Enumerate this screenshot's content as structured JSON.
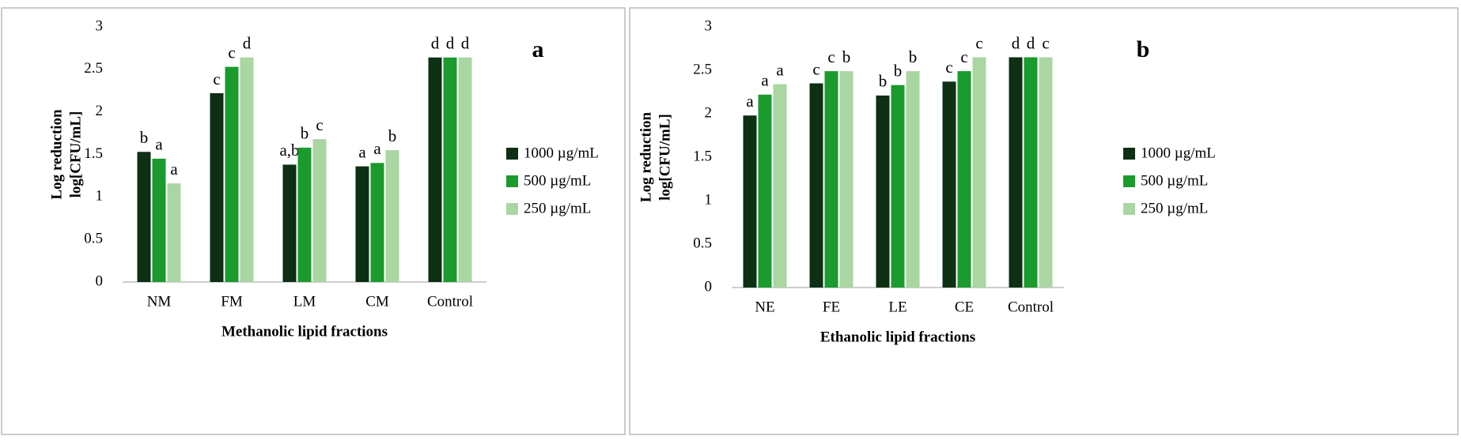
{
  "chart_data": [
    {
      "type": "bar",
      "panel_label": "a",
      "xlabel": "Methanolic lipid  fractions",
      "ylabel": [
        "Log reduction",
        "log[CFU/mL]"
      ],
      "categories": [
        "NM",
        "FM",
        "LM",
        "CM",
        "Control"
      ],
      "series": [
        {
          "name": "1000 µg/mL",
          "color": "#0d2f14",
          "values": [
            1.53,
            2.22,
            1.38,
            1.36,
            2.64
          ],
          "significance": [
            "b",
            "c",
            "a,b",
            "a",
            "d"
          ]
        },
        {
          "name": "500 µg/mL",
          "color": "#1b9a2d",
          "values": [
            1.45,
            2.53,
            1.58,
            1.4,
            2.64
          ],
          "significance": [
            "a",
            "c",
            "b",
            "a",
            "d"
          ]
        },
        {
          "name": "250 µg/mL",
          "color": "#a9d6a1",
          "values": [
            1.16,
            2.64,
            1.68,
            1.55,
            2.64
          ],
          "significance": [
            "a",
            "d",
            "c",
            "b",
            "d"
          ]
        }
      ],
      "ylim": [
        0,
        3
      ],
      "yticks": [
        0,
        0.5,
        1,
        1.5,
        2,
        2.5,
        3
      ]
    },
    {
      "type": "bar",
      "panel_label": "b",
      "xlabel": "Ethanolic lipid fractions",
      "ylabel": [
        "Log reduction",
        "log[CFU/mL]"
      ],
      "categories": [
        "NE",
        "FE",
        "LE",
        "CE",
        "Control"
      ],
      "series": [
        {
          "name": "1000 µg/mL",
          "color": "#0d2f14",
          "values": [
            1.98,
            2.35,
            2.21,
            2.37,
            2.65
          ],
          "significance": [
            "a",
            "c",
            "b",
            "c",
            "d"
          ]
        },
        {
          "name": "500 µg/mL",
          "color": "#1b9a2d",
          "values": [
            2.22,
            2.49,
            2.33,
            2.49,
            2.65
          ],
          "significance": [
            "a",
            "c",
            "b",
            "c",
            "d"
          ]
        },
        {
          "name": "250 µg/mL",
          "color": "#a9d6a1",
          "values": [
            2.34,
            2.49,
            2.49,
            2.65,
            2.65
          ],
          "significance": [
            "a",
            "b",
            "b",
            "c",
            "c"
          ]
        }
      ],
      "ylim": [
        0,
        3
      ],
      "yticks": [
        0,
        0.5,
        1,
        1.5,
        2,
        2.5,
        3
      ]
    }
  ]
}
